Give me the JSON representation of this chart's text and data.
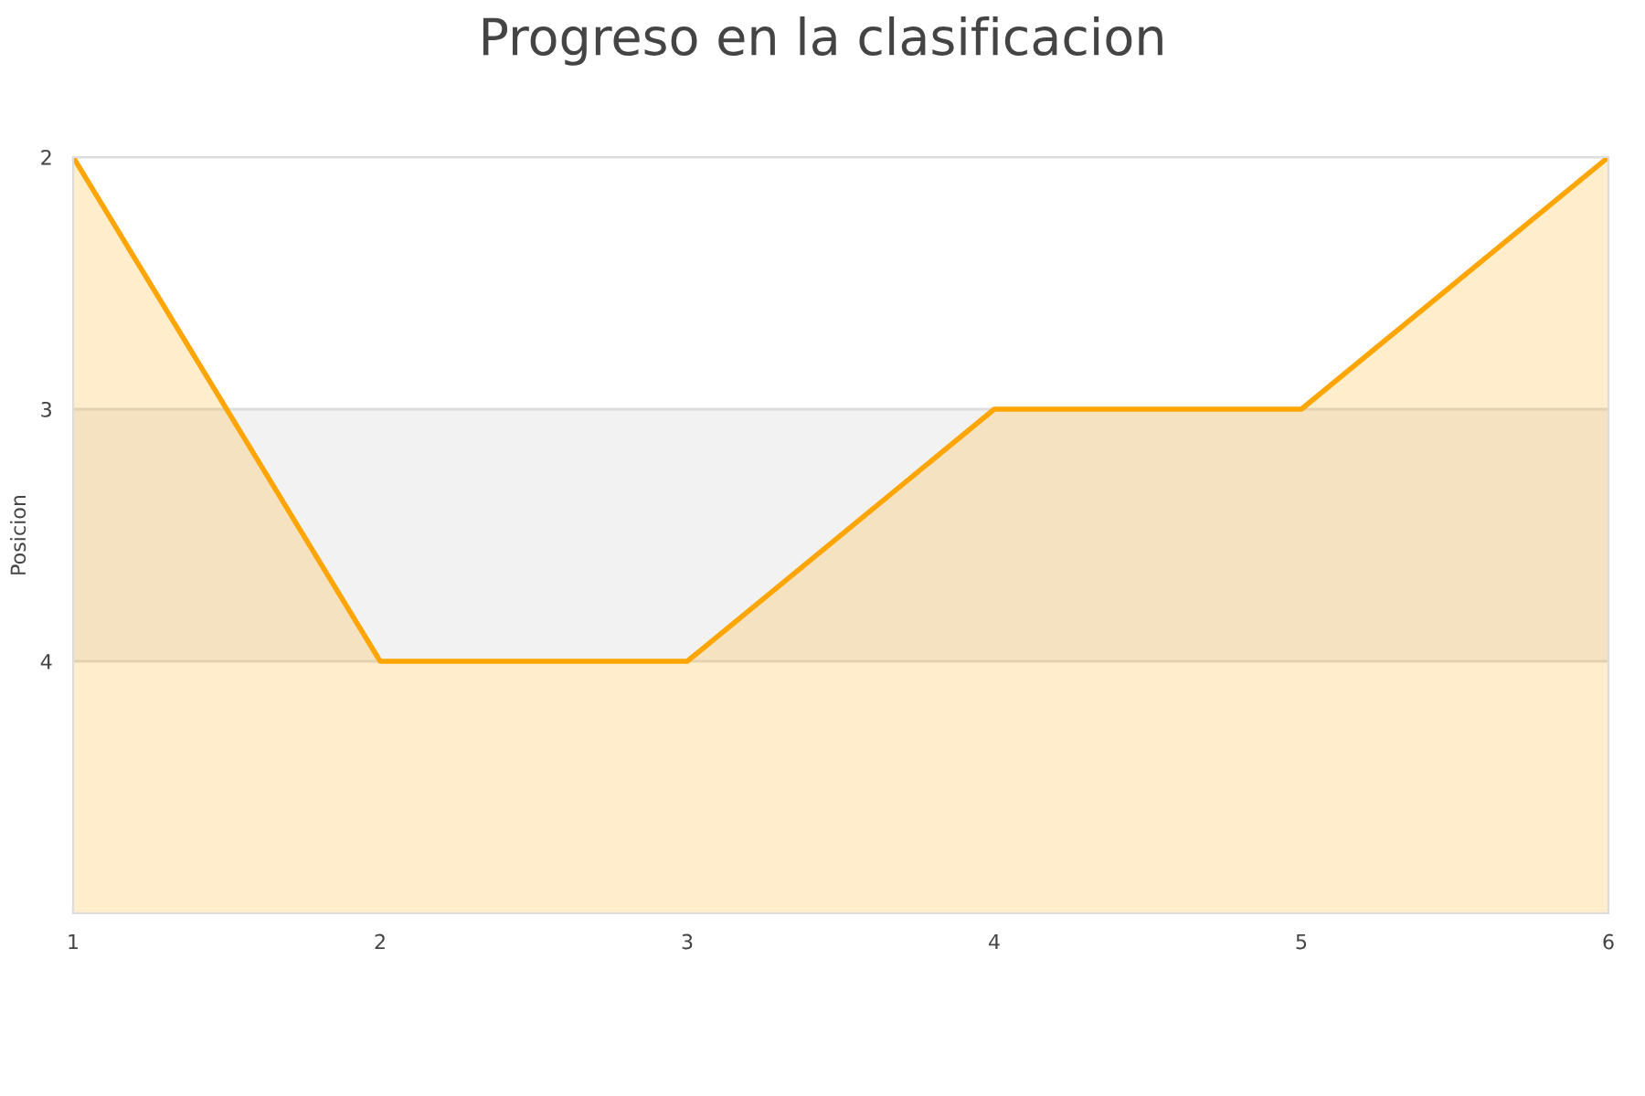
{
  "chart_data": {
    "type": "area",
    "title": "Progreso en la clasificacion",
    "ylabel": "Posicion",
    "x": [
      1,
      2,
      3,
      4,
      5,
      6
    ],
    "series": [
      {
        "color": "#ffa500",
        "values": [
          2,
          4,
          4,
          3,
          3,
          2
        ]
      }
    ],
    "xlim": [
      1,
      6
    ],
    "xticks": [
      1,
      2,
      3,
      4,
      5,
      6
    ],
    "ylim": [
      5,
      2
    ],
    "yticks": [
      2,
      3,
      4
    ],
    "bands": [
      {
        "axis": "y",
        "from": 3,
        "to": 4,
        "color": "#f2f2f2"
      }
    ],
    "grid": "y"
  }
}
